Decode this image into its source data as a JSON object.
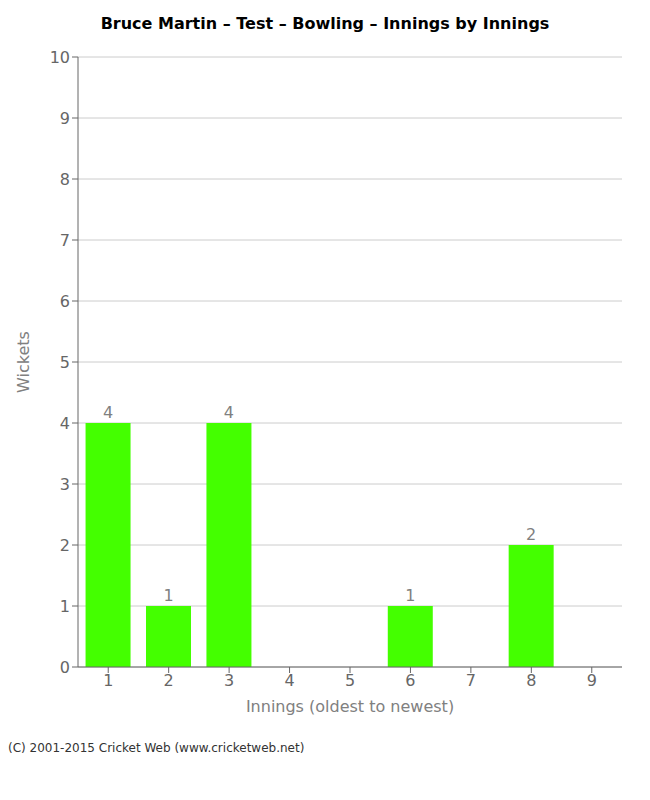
{
  "chart_data": {
    "type": "bar",
    "title": "Bruce Martin – Test – Bowling – Innings by Innings",
    "xlabel": "Innings (oldest to newest)",
    "ylabel": "Wickets",
    "categories": [
      1,
      2,
      3,
      4,
      5,
      6,
      7,
      8,
      9
    ],
    "values": [
      4,
      1,
      4,
      0,
      0,
      1,
      0,
      2,
      0
    ],
    "color": "#44ff00",
    "ylim": [
      0,
      10
    ],
    "yticks": [
      0,
      1,
      2,
      3,
      4,
      5,
      6,
      7,
      8,
      9,
      10
    ],
    "grid": true,
    "data_labels": true,
    "annotations": [
      "(C) 2001-2015 Cricket Web (www.cricketweb.net)"
    ]
  }
}
